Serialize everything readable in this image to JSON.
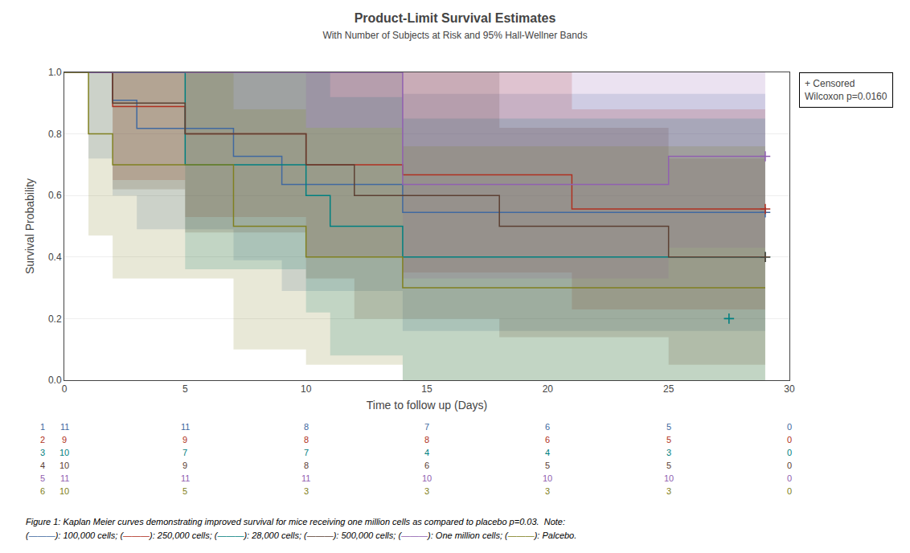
{
  "chart_data": {
    "type": "step",
    "title": "Product-Limit Survival Estimates",
    "subtitle": "With Number of Subjects at Risk and 95% Hall-Wellner Bands",
    "xlabel": "Time to follow up (Days)",
    "ylabel": "Survival Probability",
    "xlim": [
      0,
      30
    ],
    "ylim": [
      0.0,
      1.0
    ],
    "xticks": [
      0,
      5,
      10,
      15,
      20,
      25,
      30
    ],
    "yticks": [
      {
        "value": 0.0,
        "label": "0.0"
      },
      0.2,
      0.4,
      0.6,
      0.8,
      {
        "value": 1.0,
        "label": "1.0"
      }
    ],
    "grid": "y",
    "marker": "plus",
    "series": [
      {
        "color": "#4169a0",
        "x": [
          0,
          1,
          2,
          3,
          5,
          7,
          8,
          9,
          14,
          20,
          25,
          29
        ],
        "values": [
          1.0,
          1.0,
          0.909,
          0.818,
          0.818,
          0.727,
          0.727,
          0.636,
          0.545,
          0.545,
          0.545,
          0.545
        ],
        "ci_hi": [
          1.0,
          1.0,
          1.0,
          1.0,
          1.0,
          1.0,
          1.0,
          1.0,
          0.93,
          0.93,
          0.93,
          0.93
        ],
        "ci_lo": [
          1.0,
          0.72,
          0.6,
          0.49,
          0.49,
          0.39,
          0.39,
          0.29,
          0.16,
          0.16,
          0.16,
          0.16
        ],
        "censored_x": [
          29
        ],
        "censored_y": [
          0.545
        ]
      },
      {
        "color": "#b03020",
        "x": [
          0,
          2,
          4,
          5,
          7,
          10,
          14,
          18,
          21,
          25,
          29
        ],
        "values": [
          1.0,
          0.889,
          0.889,
          0.8,
          0.8,
          0.7,
          0.667,
          0.667,
          0.556,
          0.556,
          0.556
        ],
        "ci_hi": [
          1.0,
          1.0,
          1.0,
          1.0,
          1.0,
          1.0,
          1.0,
          1.0,
          0.88,
          0.88,
          0.88
        ],
        "ci_lo": [
          1.0,
          0.65,
          0.65,
          0.53,
          0.53,
          0.4,
          0.35,
          0.35,
          0.23,
          0.23,
          0.23
        ],
        "censored_x": [
          29
        ],
        "censored_y": [
          0.556
        ]
      },
      {
        "color": "#008080",
        "x": [
          0,
          2,
          5,
          6,
          10,
          11,
          14,
          20,
          25,
          29
        ],
        "values": [
          1.0,
          1.0,
          0.7,
          0.7,
          0.6,
          0.5,
          0.4,
          0.4,
          0.4,
          0.4
        ],
        "ci_hi": [
          1.0,
          1.0,
          1.0,
          1.0,
          1.0,
          0.92,
          0.85,
          0.85,
          0.85,
          0.85
        ],
        "ci_lo": [
          1.0,
          1.0,
          0.36,
          0.36,
          0.22,
          0.08,
          0.0,
          0.0,
          0.0,
          0.0
        ],
        "censored_x": [
          29
        ],
        "censored_y": [
          0.4
        ]
      },
      {
        "color": "#5c4033",
        "x": [
          0,
          2,
          3,
          5,
          10,
          12,
          14,
          18,
          20,
          25,
          29
        ],
        "values": [
          1.0,
          0.9,
          0.9,
          0.8,
          0.7,
          0.6,
          0.6,
          0.5,
          0.5,
          0.4,
          0.4
        ],
        "ci_hi": [
          1.0,
          1.0,
          1.0,
          1.0,
          1.0,
          1.0,
          1.0,
          0.82,
          0.82,
          0.72,
          0.72
        ],
        "ci_lo": [
          1.0,
          0.62,
          0.62,
          0.48,
          0.33,
          0.2,
          0.2,
          0.14,
          0.14,
          0.05,
          0.05
        ],
        "censored_x": [
          29
        ],
        "censored_y": [
          0.4
        ]
      },
      {
        "color": "#9060b0",
        "x": [
          0,
          10,
          14,
          18,
          20,
          25,
          29
        ],
        "values": [
          1.0,
          1.0,
          0.636,
          0.636,
          0.636,
          0.727,
          0.727
        ],
        "ci_hi": [
          1.0,
          1.0,
          1.0,
          1.0,
          1.0,
          1.0,
          1.0
        ],
        "ci_lo": [
          1.0,
          0.82,
          0.33,
          0.33,
          0.33,
          0.43,
          0.43
        ],
        "censored_x": [
          29
        ],
        "censored_y": [
          0.727
        ]
      },
      {
        "color": "#808020",
        "x": [
          0,
          1,
          2,
          5,
          7,
          8,
          10,
          12,
          14,
          20,
          25,
          29
        ],
        "values": [
          1.0,
          0.8,
          0.7,
          0.7,
          0.5,
          0.5,
          0.4,
          0.4,
          0.3,
          0.3,
          0.3,
          0.3
        ],
        "ci_hi": [
          1.0,
          1.0,
          1.0,
          1.0,
          0.88,
          0.88,
          0.82,
          0.82,
          0.76,
          0.76,
          0.76,
          0.76
        ],
        "ci_lo": [
          1.0,
          0.47,
          0.33,
          0.33,
          0.1,
          0.1,
          0.05,
          0.05,
          0.0,
          0.0,
          0.0,
          0.0
        ],
        "censored_x": [],
        "censored_y": []
      }
    ],
    "extra_censored": [
      {
        "x": 27.5,
        "y": 0.2,
        "color": "#008080"
      }
    ],
    "annotations": [
      "+ Censored",
      "Wilcoxon p=0.0160"
    ],
    "risk_table": {
      "times": [
        0,
        5,
        10,
        15,
        20,
        25,
        30
      ],
      "rows": [
        {
          "label": "1",
          "color": "#4169a0",
          "values": [
            11,
            11,
            8,
            7,
            6,
            5,
            0
          ]
        },
        {
          "label": "2",
          "color": "#b03020",
          "values": [
            9,
            9,
            8,
            8,
            6,
            5,
            0
          ]
        },
        {
          "label": "3",
          "color": "#008080",
          "values": [
            10,
            7,
            7,
            4,
            4,
            3,
            0
          ]
        },
        {
          "label": "4",
          "color": "#5c4033",
          "values": [
            10,
            9,
            8,
            6,
            5,
            5,
            0
          ]
        },
        {
          "label": "5",
          "color": "#9060b0",
          "values": [
            11,
            11,
            11,
            10,
            10,
            10,
            0
          ]
        },
        {
          "label": "6",
          "color": "#808020",
          "values": [
            10,
            5,
            3,
            3,
            3,
            3,
            0
          ]
        }
      ]
    },
    "caption": [
      [
        {
          "text": "Figure 1: Kaplan Meier curves demonstrating improved survival for mice receiving one million cells as compared to placebo p=0.03.  Note:",
          "color": "black"
        }
      ],
      [
        {
          "text": "(",
          "color": "black"
        },
        {
          "text": "———",
          "color": "#4169a0"
        },
        {
          "text": "): 100,000 cells; (",
          "color": "black"
        },
        {
          "text": "———",
          "color": "#b03020"
        },
        {
          "text": "): 250,000 cells; (",
          "color": "black"
        },
        {
          "text": "———",
          "color": "#008080"
        },
        {
          "text": "): 28,000 cells; (",
          "color": "black"
        },
        {
          "text": "———",
          "color": "#5c4033"
        },
        {
          "text": "): 500,000 cells; (",
          "color": "black"
        },
        {
          "text": "———",
          "color": "#9060b0"
        },
        {
          "text": "): One million cells; (",
          "color": "black"
        },
        {
          "text": "———",
          "color": "#808020"
        },
        {
          "text": "): Palcebo.",
          "color": "black"
        }
      ]
    ]
  }
}
